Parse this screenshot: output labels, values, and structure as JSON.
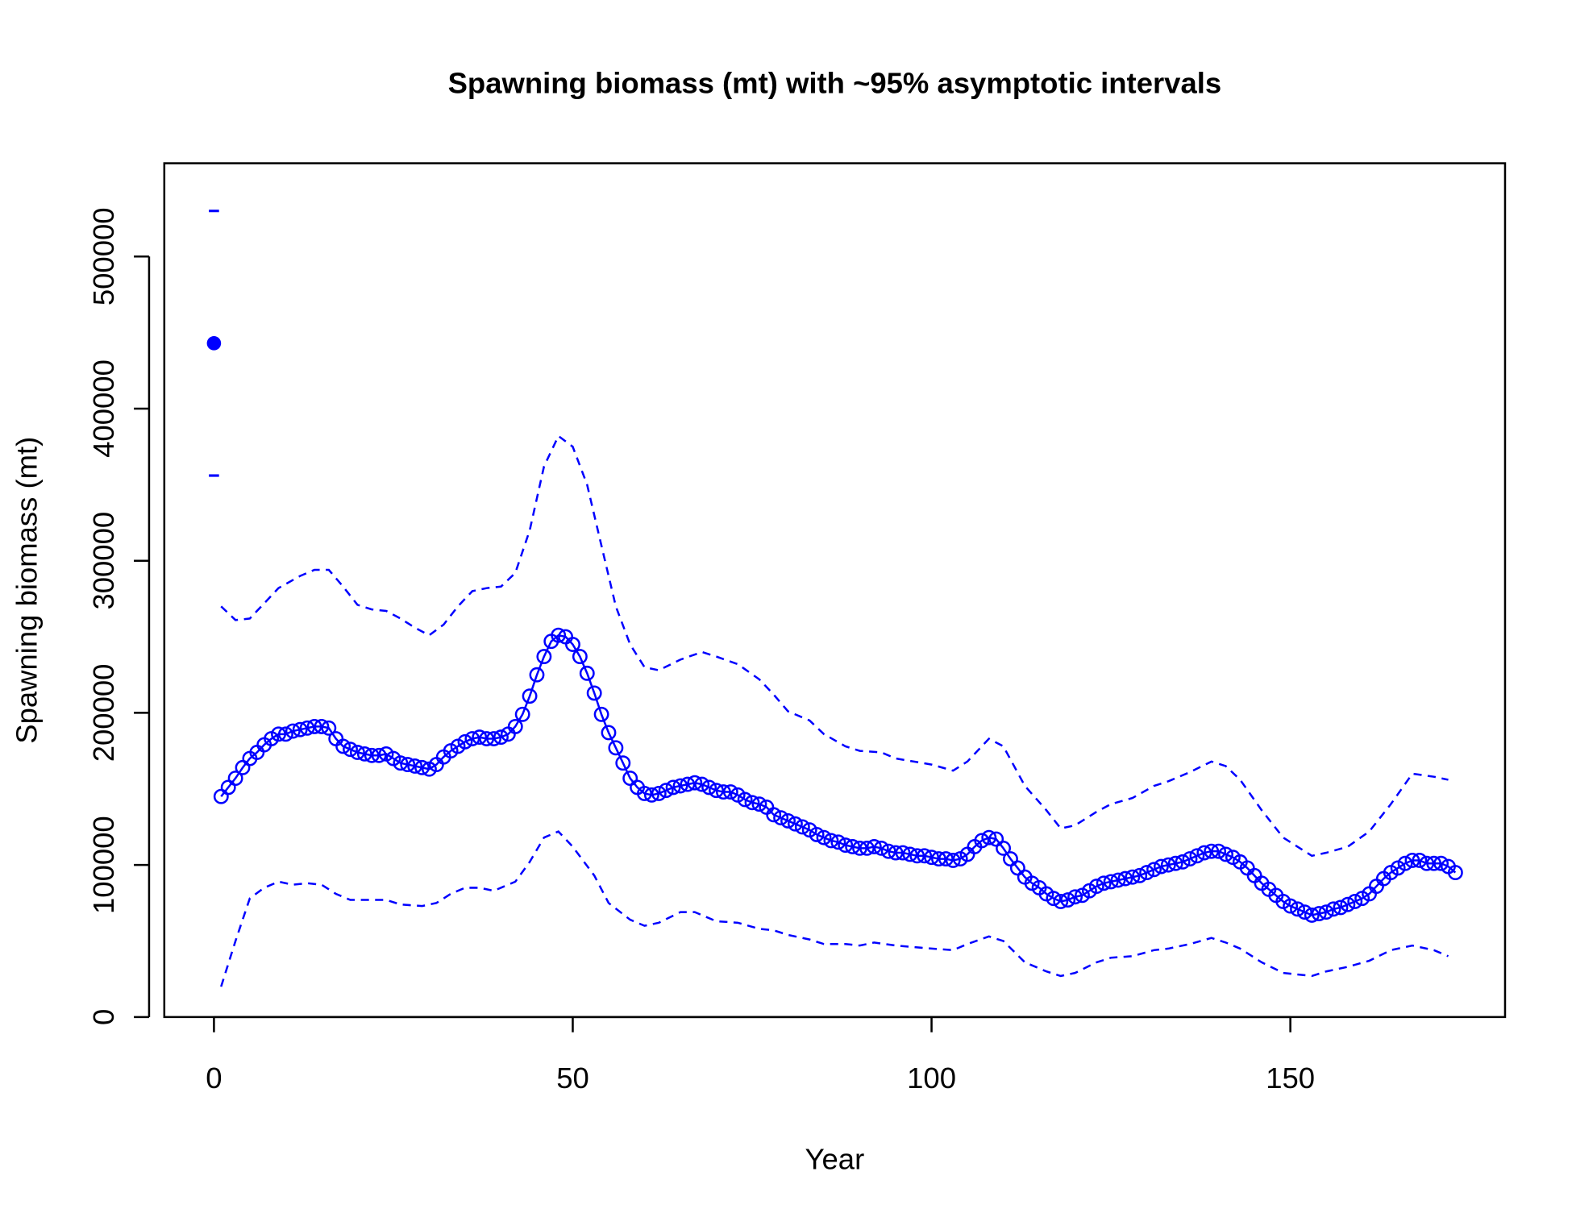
{
  "chart_data": {
    "type": "line",
    "title": "Spawning biomass (mt) with ~95% asymptotic intervals",
    "x_label": "Year",
    "y_label": "Spawning biomass (mt)",
    "xlim": [
      -6.92,
      179.92
    ],
    "ylim": [
      0,
      561333
    ],
    "xticks": [
      0,
      50,
      100,
      150
    ],
    "yticks": [
      0,
      100000,
      200000,
      300000,
      400000,
      500000
    ],
    "x": [
      1,
      2,
      3,
      4,
      5,
      6,
      7,
      8,
      9,
      10,
      11,
      12,
      13,
      14,
      15,
      16,
      17,
      18,
      19,
      20,
      21,
      22,
      23,
      24,
      25,
      26,
      27,
      28,
      29,
      30,
      31,
      32,
      33,
      34,
      35,
      36,
      37,
      38,
      39,
      40,
      41,
      42,
      43,
      44,
      45,
      46,
      47,
      48,
      49,
      50,
      51,
      52,
      53,
      54,
      55,
      56,
      57,
      58,
      59,
      60,
      61,
      62,
      63,
      64,
      65,
      66,
      67,
      68,
      69,
      70,
      71,
      72,
      73,
      74,
      75,
      76,
      77,
      78,
      79,
      80,
      81,
      82,
      83,
      84,
      85,
      86,
      87,
      88,
      89,
      90,
      91,
      92,
      93,
      94,
      95,
      96,
      97,
      98,
      99,
      100,
      101,
      102,
      103,
      104,
      105,
      106,
      107,
      108,
      109,
      110,
      111,
      112,
      113,
      114,
      115,
      116,
      117,
      118,
      119,
      120,
      121,
      122,
      123,
      124,
      125,
      126,
      127,
      128,
      129,
      130,
      131,
      132,
      133,
      134,
      135,
      136,
      137,
      138,
      139,
      140,
      141,
      142,
      143,
      144,
      145,
      146,
      147,
      148,
      149,
      150,
      151,
      152,
      153,
      154,
      155,
      156,
      157,
      158,
      159,
      160,
      161,
      162,
      163,
      164,
      165,
      166,
      167,
      168,
      169,
      170,
      171,
      172,
      173
    ],
    "series": [
      {
        "style": "points-line",
        "color": "#0000ff",
        "values": [
          145000,
          151000,
          157000,
          164000,
          170000,
          174000,
          179000,
          183000,
          186000,
          186000,
          188000,
          189000,
          190000,
          191000,
          191000,
          190000,
          183000,
          178000,
          176000,
          174000,
          173000,
          172000,
          172000,
          173000,
          170000,
          167000,
          166000,
          165000,
          164000,
          163000,
          166000,
          171000,
          175000,
          178000,
          181000,
          183000,
          184000,
          183000,
          183000,
          184000,
          186000,
          191000,
          199000,
          211000,
          225000,
          237000,
          247000,
          251000,
          250000,
          245000,
          237000,
          226000,
          213000,
          199000,
          187000,
          177000,
          167000,
          157000,
          151000,
          147000,
          146000,
          147000,
          149000,
          151000,
          152000,
          153000,
          154000,
          153000,
          151000,
          149000,
          148000,
          148000,
          146000,
          143000,
          141000,
          140000,
          138000,
          133000,
          131000,
          129000,
          127000,
          125000,
          123000,
          120000,
          118000,
          116000,
          115000,
          113000,
          112000,
          111000,
          111000,
          112000,
          111000,
          109000,
          108000,
          108000,
          107000,
          106000,
          106000,
          105000,
          104000,
          104000,
          103000,
          104000,
          107000,
          112000,
          116000,
          118000,
          117000,
          111000,
          104000,
          98000,
          92000,
          88000,
          85000,
          81000,
          78000,
          76000,
          77000,
          79000,
          80000,
          83000,
          86000,
          88000,
          89000,
          90000,
          91000,
          92000,
          93000,
          95000,
          97000,
          99000,
          100000,
          101000,
          102000,
          104000,
          106000,
          108000,
          109000,
          109000,
          107000,
          105000,
          102000,
          98000,
          93000,
          88000,
          84000,
          80000,
          76000,
          73000,
          71000,
          69000,
          67000,
          68000,
          69000,
          71000,
          72000,
          74000,
          76000,
          78000,
          81000,
          86000,
          91000,
          95000,
          98000,
          101000,
          103000,
          103000,
          101000,
          101000,
          101000,
          99000,
          95000
        ]
      },
      {
        "style": "dashed",
        "color": "#0000ff",
        "x": [
          1,
          3,
          5,
          7,
          9,
          12,
          14,
          16,
          18,
          20,
          22,
          24,
          26,
          28,
          30,
          32,
          34,
          36,
          38,
          40,
          42,
          44,
          46,
          48,
          50,
          52,
          54,
          56,
          58,
          60,
          62,
          65,
          68,
          70,
          73,
          76,
          78,
          80,
          83,
          85,
          88,
          90,
          93,
          95,
          100,
          103,
          105,
          108,
          110,
          113,
          116,
          118,
          120,
          123,
          125,
          128,
          131,
          133,
          136,
          139,
          141,
          143,
          146,
          149,
          153,
          155,
          158,
          161,
          164,
          167,
          170,
          172
        ],
        "values": [
          270000,
          261000,
          262000,
          272000,
          282000,
          290000,
          294000,
          294000,
          283000,
          271000,
          268000,
          267000,
          262000,
          256000,
          251000,
          258000,
          270000,
          280000,
          282000,
          283000,
          292000,
          320000,
          362000,
          382000,
          375000,
          350000,
          310000,
          270000,
          245000,
          230000,
          228000,
          235000,
          240000,
          237000,
          232000,
          222000,
          212000,
          201000,
          195000,
          186000,
          178000,
          175000,
          174000,
          170000,
          166000,
          162000,
          168000,
          183000,
          178000,
          152000,
          136000,
          124000,
          126000,
          135000,
          140000,
          144000,
          152000,
          155000,
          161000,
          168000,
          165000,
          156000,
          136000,
          118000,
          106000,
          108000,
          112000,
          122000,
          140000,
          160000,
          158000,
          156000
        ]
      },
      {
        "style": "dashed",
        "color": "#0000ff",
        "x": [
          1,
          3,
          5,
          7,
          9,
          11,
          13,
          15,
          17,
          19,
          22,
          24,
          26,
          29,
          31,
          33,
          35,
          37,
          39,
          42,
          44,
          46,
          48,
          50,
          53,
          55,
          58,
          60,
          62,
          65,
          67,
          70,
          73,
          76,
          78,
          80,
          83,
          85,
          88,
          90,
          92,
          95,
          100,
          103,
          105,
          108,
          110,
          113,
          116,
          118,
          120,
          123,
          125,
          128,
          131,
          133,
          136,
          139,
          141,
          143,
          146,
          149,
          153,
          155,
          158,
          161,
          164,
          167,
          170,
          172
        ],
        "values": [
          20000,
          50000,
          78000,
          85000,
          89000,
          87000,
          88000,
          87000,
          81000,
          77000,
          77000,
          77000,
          74000,
          73000,
          75000,
          81000,
          85000,
          85000,
          83000,
          89000,
          102000,
          118000,
          122000,
          112000,
          93000,
          75000,
          64000,
          60000,
          62000,
          69000,
          69000,
          63000,
          62000,
          58000,
          57000,
          54000,
          51000,
          48000,
          48000,
          47000,
          49000,
          47000,
          45000,
          44000,
          48000,
          53000,
          50000,
          36000,
          30000,
          27000,
          29000,
          36000,
          39000,
          40000,
          44000,
          45000,
          48000,
          52000,
          49000,
          45000,
          36000,
          29000,
          27000,
          30000,
          33000,
          37000,
          44000,
          47000,
          44000,
          40000
        ]
      },
      {
        "style": "filled-point",
        "color": "#0000ff",
        "x": [
          0
        ],
        "values": [
          443000
        ]
      },
      {
        "style": "dash-mark",
        "color": "#0000ff",
        "x": [
          0
        ],
        "values": [
          530000
        ]
      },
      {
        "style": "dash-mark",
        "color": "#0000ff",
        "x": [
          0
        ],
        "values": [
          356000
        ]
      }
    ]
  }
}
